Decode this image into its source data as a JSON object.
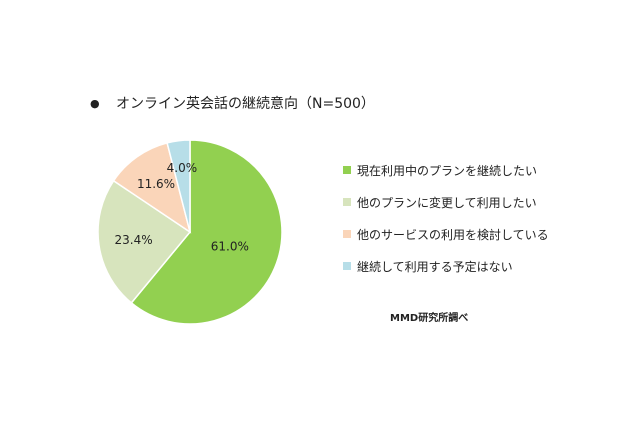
{
  "chart_data": {
    "type": "pie",
    "title": "オンライン英会話の継続意向（N=500）",
    "unit": "%",
    "slices": [
      {
        "label": "現在利用中のプランを継続したい",
        "value": 61.0,
        "display": "61.0%",
        "color": "#92D050"
      },
      {
        "label": "他のプランに変更して利用したい",
        "value": 23.4,
        "display": "23.4%",
        "color": "#D7E4BD"
      },
      {
        "label": "他のサービスの利用を検討している",
        "value": 11.6,
        "display": "11.6%",
        "color": "#FAD5B9"
      },
      {
        "label": "継続して利用する予定はない",
        "value": 4.0,
        "display": "4.0%",
        "color": "#B7DEE8"
      }
    ],
    "legend_position": "right"
  },
  "bullet": "●",
  "source": "MMD研究所調べ"
}
